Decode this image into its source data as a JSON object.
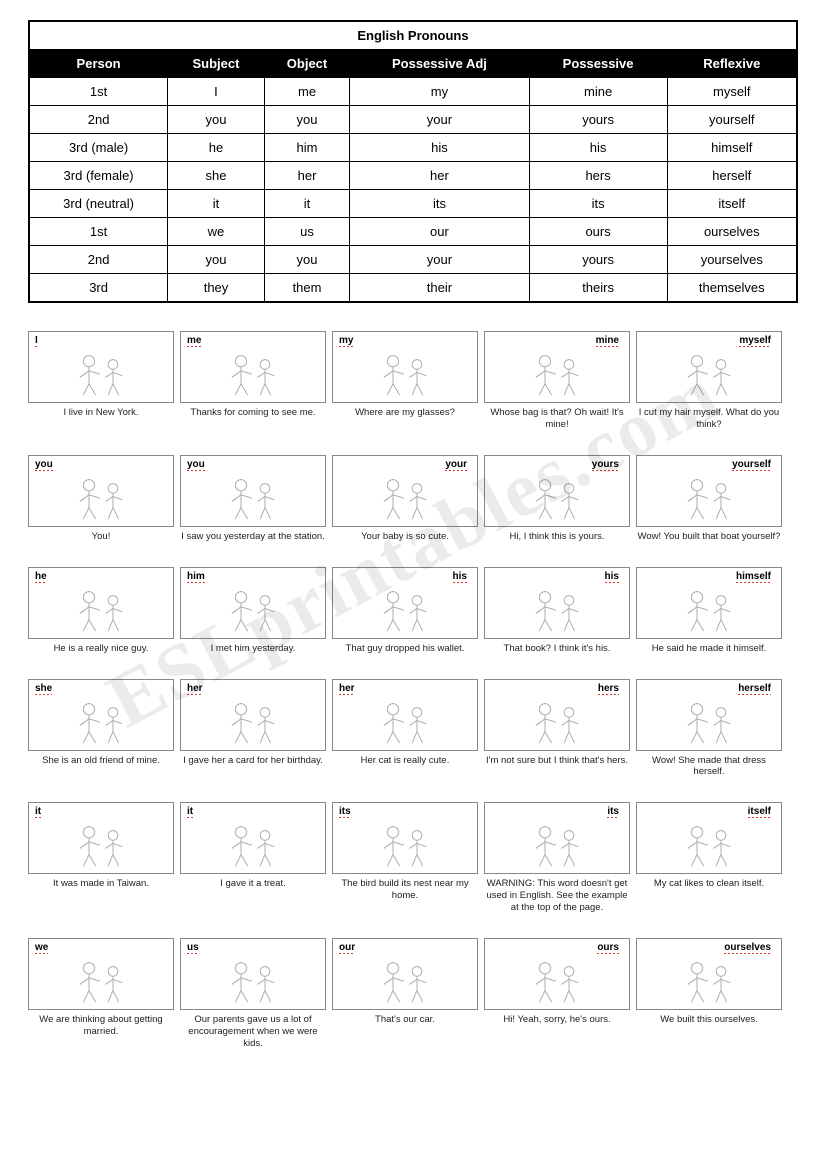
{
  "watermark": "ESLprintables.com",
  "table": {
    "title": "English Pronouns",
    "columns": [
      "Person",
      "Subject",
      "Object",
      "Possessive Adj",
      "Possessive",
      "Reflexive"
    ],
    "rows": [
      [
        "1st",
        "I",
        "me",
        "my",
        "mine",
        "myself"
      ],
      [
        "2nd",
        "you",
        "you",
        "your",
        "yours",
        "yourself"
      ],
      [
        "3rd (male)",
        "he",
        "him",
        "his",
        "his",
        "himself"
      ],
      [
        "3rd (female)",
        "she",
        "her",
        "her",
        "hers",
        "herself"
      ],
      [
        "3rd (neutral)",
        "it",
        "it",
        "its",
        "its",
        "itself"
      ],
      [
        "1st",
        "we",
        "us",
        "our",
        "ours",
        "ourselves"
      ],
      [
        "2nd",
        "you",
        "you",
        "your",
        "yours",
        "yourselves"
      ],
      [
        "3rd",
        "they",
        "them",
        "their",
        "theirs",
        "themselves"
      ]
    ]
  },
  "cards": {
    "rows": [
      [
        {
          "label": "I",
          "pos": "left",
          "caption": "I live in New York."
        },
        {
          "label": "me",
          "pos": "left",
          "caption": "Thanks for coming to see me."
        },
        {
          "label": "my",
          "pos": "left",
          "caption": "Where are my glasses?"
        },
        {
          "label": "mine",
          "pos": "right",
          "caption": "Whose bag is that? Oh wait! It's mine!"
        },
        {
          "label": "myself",
          "pos": "right",
          "caption": "I cut my hair myself. What do you think?"
        }
      ],
      [
        {
          "label": "you",
          "pos": "left",
          "caption": "You!"
        },
        {
          "label": "you",
          "pos": "left",
          "caption": "I saw you yesterday at the station."
        },
        {
          "label": "your",
          "pos": "right",
          "caption": "Your baby is so cute."
        },
        {
          "label": "yours",
          "pos": "right",
          "caption": "Hi, I think this is yours."
        },
        {
          "label": "yourself",
          "pos": "right",
          "caption": "Wow! You built that boat yourself?"
        }
      ],
      [
        {
          "label": "he",
          "pos": "left",
          "caption": "He is a really nice guy."
        },
        {
          "label": "him",
          "pos": "left",
          "caption": "I met him yesterday."
        },
        {
          "label": "his",
          "pos": "right",
          "caption": "That guy dropped his wallet."
        },
        {
          "label": "his",
          "pos": "right",
          "caption": "That book? I think it's his."
        },
        {
          "label": "himself",
          "pos": "right",
          "caption": "He said he made it himself."
        }
      ],
      [
        {
          "label": "she",
          "pos": "left",
          "caption": "She is an old friend of mine."
        },
        {
          "label": "her",
          "pos": "left",
          "caption": "I gave her a card for her birthday."
        },
        {
          "label": "her",
          "pos": "left",
          "caption": "Her cat is really cute."
        },
        {
          "label": "hers",
          "pos": "right",
          "caption": "I'm not sure but I think that's hers."
        },
        {
          "label": "herself",
          "pos": "right",
          "caption": "Wow! She made that dress herself."
        }
      ],
      [
        {
          "label": "it",
          "pos": "left",
          "caption": "It was made in Taiwan."
        },
        {
          "label": "it",
          "pos": "left",
          "caption": "I gave it a treat."
        },
        {
          "label": "its",
          "pos": "left",
          "caption": "The bird build its nest near my home."
        },
        {
          "label": "its",
          "pos": "right",
          "caption": "WARNING: This word doesn't get used in English. See the example at the top of the page."
        },
        {
          "label": "itself",
          "pos": "right",
          "caption": "My cat likes to clean itself."
        }
      ],
      [
        {
          "label": "we",
          "pos": "left",
          "caption": "We are thinking about getting married."
        },
        {
          "label": "us",
          "pos": "left",
          "caption": "Our parents gave us a lot of encouragement when we were kids."
        },
        {
          "label": "our",
          "pos": "left",
          "caption": "That's our car."
        },
        {
          "label": "ours",
          "pos": "right",
          "caption": "Hi! Yeah, sorry, he's ours."
        },
        {
          "label": "ourselves",
          "pos": "right",
          "caption": "We built this ourselves."
        }
      ]
    ]
  },
  "style": {
    "doodle_stroke": "#666666",
    "border_color": "#000000",
    "header_bg": "#000000",
    "header_fg": "#ffffff"
  }
}
